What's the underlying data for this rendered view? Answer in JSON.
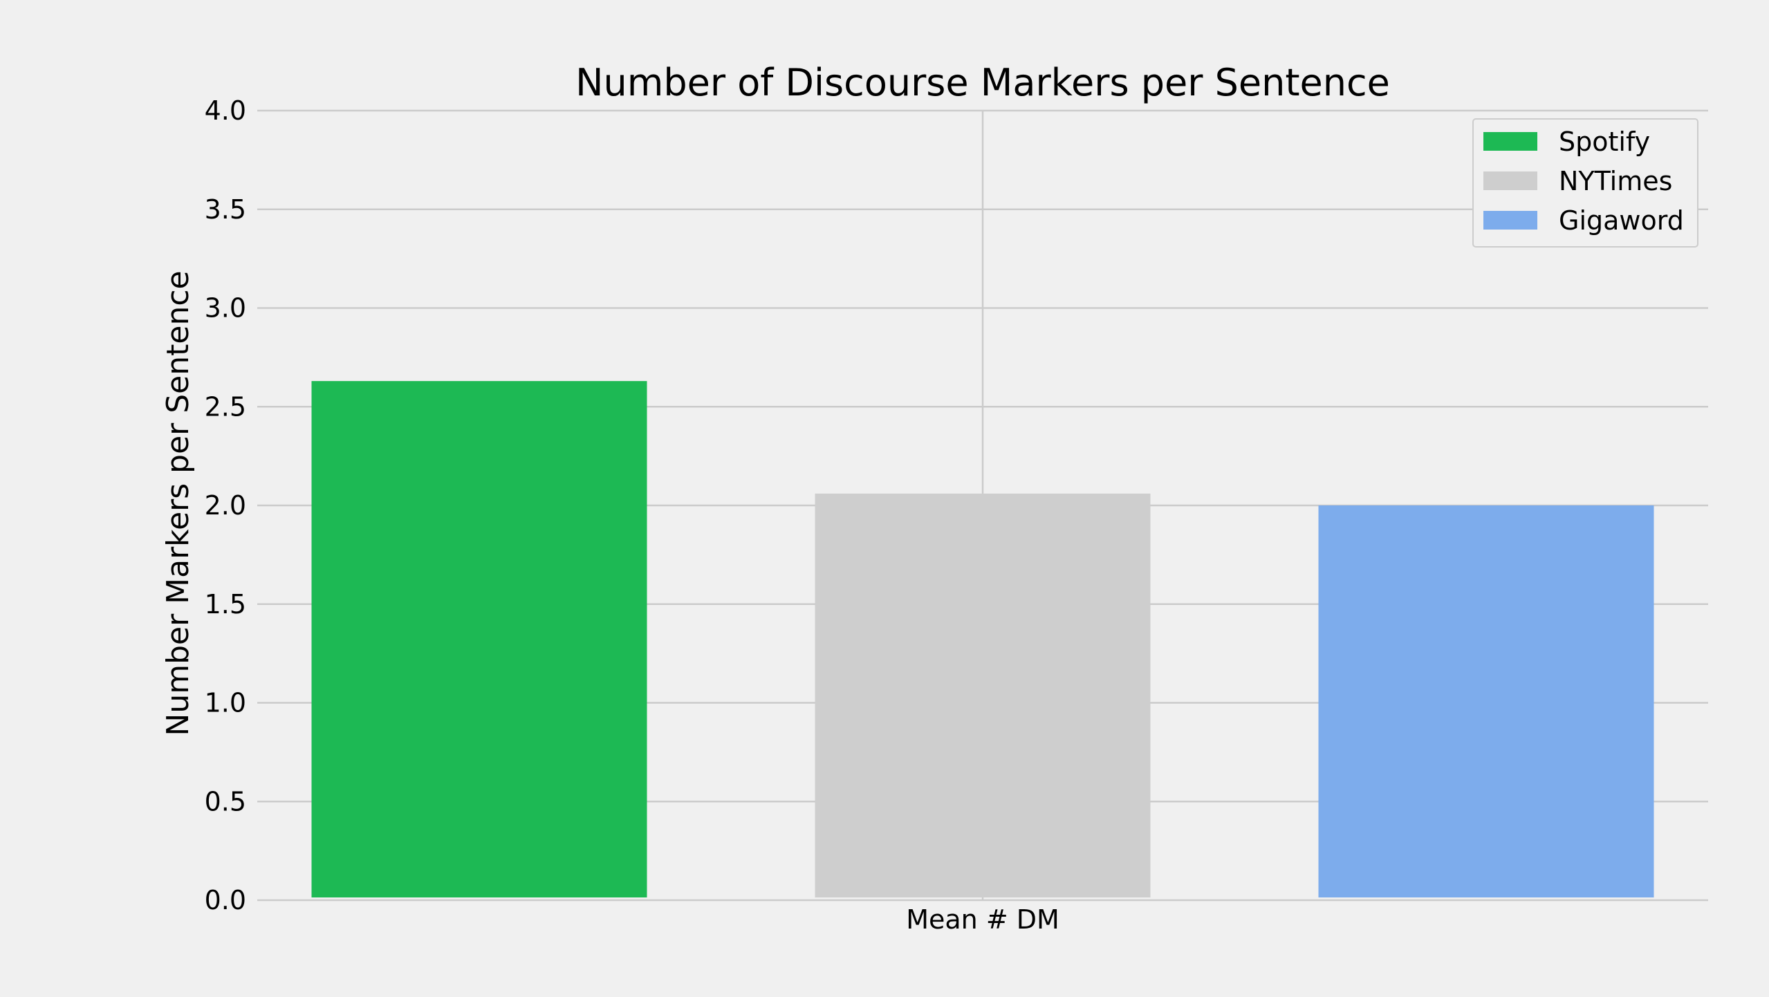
{
  "chart_data": {
    "type": "bar",
    "title": "Number of Discourse Markers per Sentence",
    "xlabel": "",
    "ylabel": "Number Markers per Sentence",
    "categories": [
      "Mean # DM"
    ],
    "series": [
      {
        "name": "Spotify",
        "values": [
          2.63
        ],
        "color": "#1db954"
      },
      {
        "name": "NYTimes",
        "values": [
          2.06
        ],
        "color": "#cecece"
      },
      {
        "name": "Gigaword",
        "values": [
          2.0
        ],
        "color": "#7dacec"
      }
    ],
    "ylim": [
      0,
      4
    ],
    "yticks": [
      "0.0",
      "0.5",
      "1.0",
      "1.5",
      "2.0",
      "2.5",
      "3.0",
      "3.5",
      "4.0"
    ],
    "grid": true,
    "legend_position": "top-right",
    "background_color": "#f0f0f0",
    "grid_color": "#cbcbcb"
  }
}
